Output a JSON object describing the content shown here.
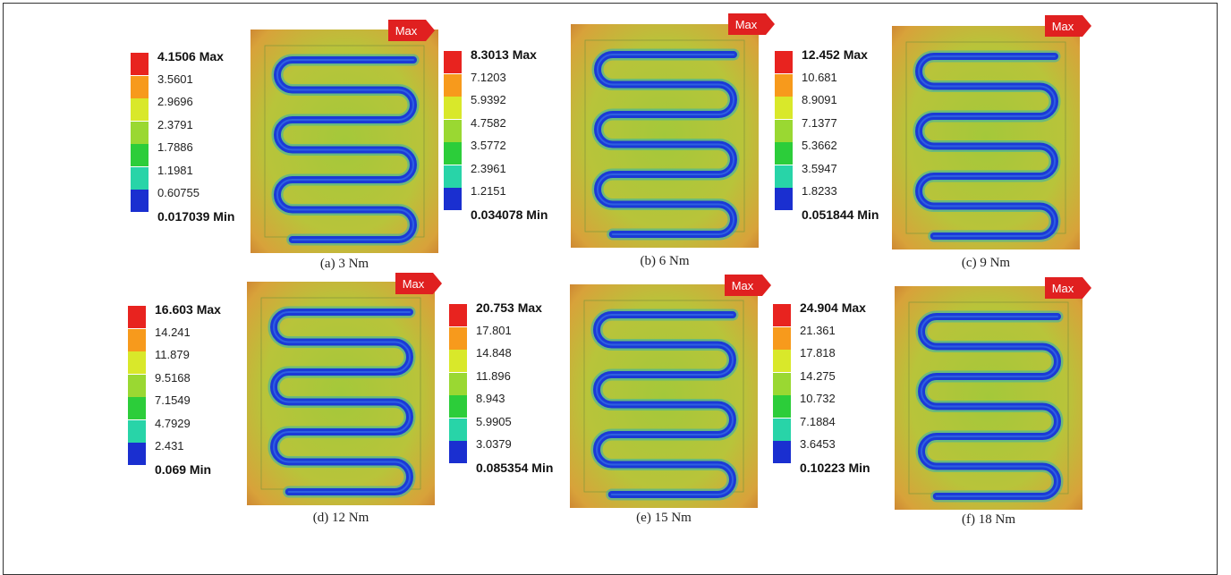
{
  "max_tag_label": "Max",
  "scale_colors": [
    "#e8231f",
    "#f79a1c",
    "#d9e82a",
    "#9ad832",
    "#2ccd3a",
    "#28d4a8",
    "#2aa8e8",
    "#1a2fd0"
  ],
  "panels": [
    {
      "caption": "(a) 3 Nm",
      "max_label": "4.1506 Max",
      "levels": [
        "3.5601",
        "2.9696",
        "2.3791",
        "1.7886",
        "1.1981",
        "0.60755"
      ],
      "min_label": "0.017039 Min"
    },
    {
      "caption": "(b) 6 Nm",
      "max_label": "8.3013 Max",
      "levels": [
        "7.1203",
        "5.9392",
        "4.7582",
        "3.5772",
        "2.3961",
        "1.2151"
      ],
      "min_label": "0.034078 Min"
    },
    {
      "caption": "(c) 9 Nm",
      "max_label": "12.452 Max",
      "levels": [
        "10.681",
        "8.9091",
        "7.1377",
        "5.3662",
        "3.5947",
        "1.8233"
      ],
      "min_label": "0.051844 Min"
    },
    {
      "caption": "(d) 12 Nm",
      "max_label": "16.603 Max",
      "levels": [
        "14.241",
        "11.879",
        "9.5168",
        "7.1549",
        "4.7929",
        "2.431"
      ],
      "min_label": "0.069 Min"
    },
    {
      "caption": "(e) 15 Nm",
      "max_label": "20.753 Max",
      "levels": [
        "17.801",
        "14.848",
        "11.896",
        "8.943",
        "5.9905",
        "3.0379"
      ],
      "min_label": "0.085354 Min"
    },
    {
      "caption": "(f) 18 Nm",
      "max_label": "24.904 Max",
      "levels": [
        "21.361",
        "17.818",
        "14.275",
        "10.732",
        "7.1884",
        "3.6453"
      ],
      "min_label": "0.10223 Min"
    }
  ]
}
